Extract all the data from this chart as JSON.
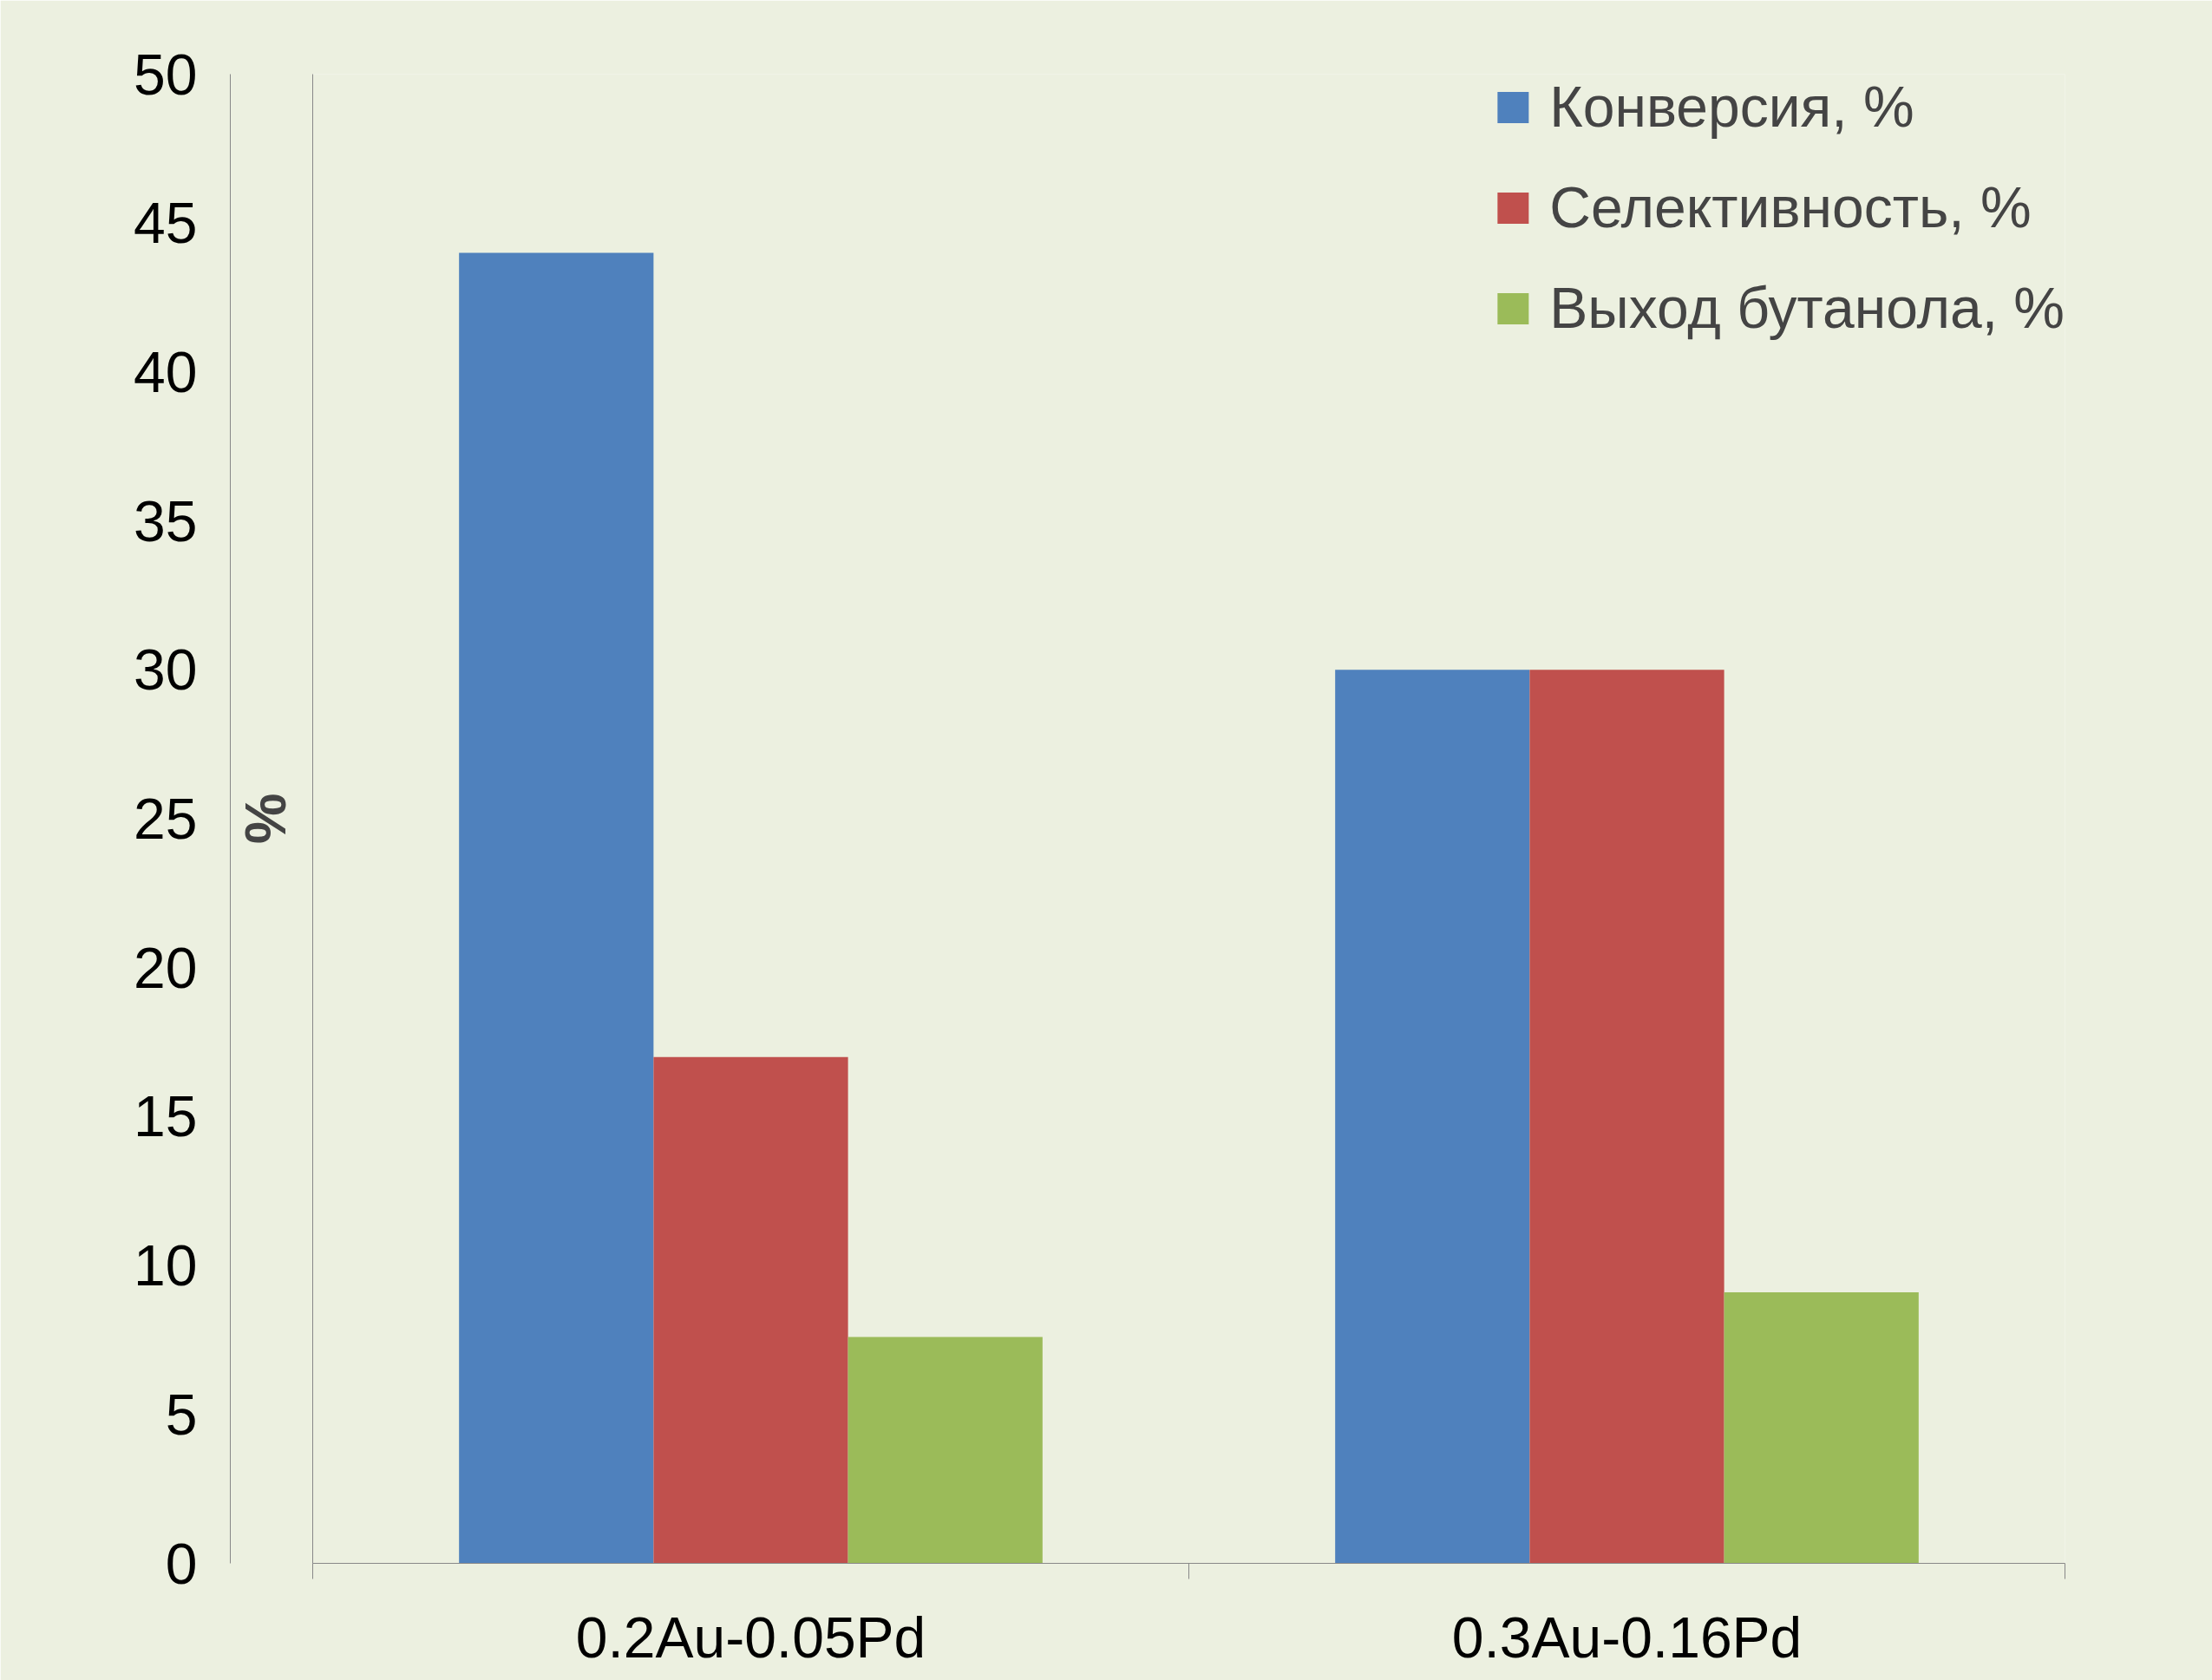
{
  "chart_data": {
    "type": "bar",
    "ylabel": "%",
    "categories": [
      "0.2Au-0.05Pd",
      "0.3Au-0.16Pd"
    ],
    "series": [
      {
        "name": "Конверсия, %",
        "color": "#4f81bd",
        "values": [
          44,
          30
        ]
      },
      {
        "name": "Селективность, %",
        "color": "#c0504d",
        "values": [
          17,
          30
        ]
      },
      {
        "name": "Выход бутанола, %",
        "color": "#9bbb59",
        "values": [
          7.6,
          9.1
        ]
      }
    ],
    "ylim": [
      0,
      50
    ],
    "yticks": [
      0,
      5,
      10,
      15,
      20,
      25,
      30,
      35,
      40,
      45,
      50
    ],
    "grid": false,
    "legend": "top right"
  }
}
